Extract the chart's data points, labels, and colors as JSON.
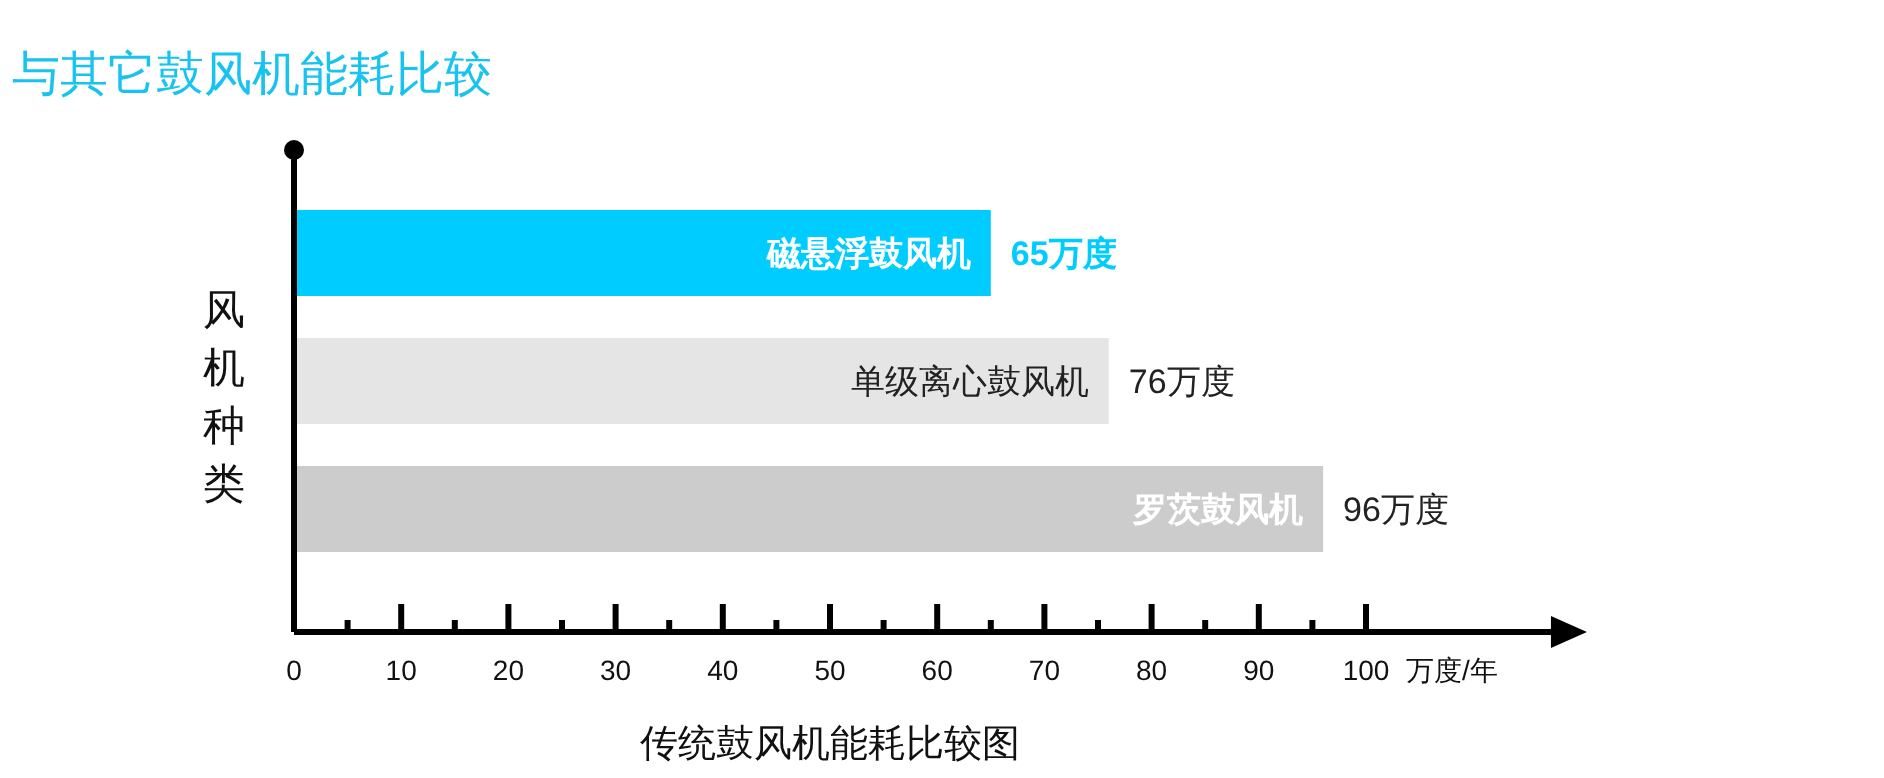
{
  "chart_data": {
    "type": "bar",
    "orientation": "horizontal",
    "title": "与其它鼓风机能耗比较",
    "ylabel": "风机种类",
    "xlabel": "万度/年",
    "annotations": [
      "传统鼓风机能耗比较图"
    ],
    "categories": [
      "磁悬浮鼓风机",
      "单级离心鼓风机",
      "罗茨鼓风机"
    ],
    "values": [
      65,
      76,
      96
    ],
    "colors": [
      "#00ccff",
      "#e5e5e5",
      "#cccccc"
    ],
    "value_labels": [
      "65万度",
      "76万度",
      "96万度"
    ],
    "xlim": [
      0,
      118
    ],
    "xticks": [
      0,
      {
        "value": 5,
        "label": null
      },
      10,
      {
        "value": 15,
        "label": null
      },
      20,
      {
        "value": 25,
        "label": null
      },
      30,
      {
        "value": 35,
        "label": null
      },
      40,
      {
        "value": 45,
        "label": null
      },
      50,
      {
        "value": 55,
        "label": null
      },
      60,
      {
        "value": 65,
        "label": null
      },
      70,
      {
        "value": 75,
        "label": null
      },
      80,
      {
        "value": 85,
        "label": null
      },
      90,
      {
        "value": 95,
        "label": null
      },
      100
    ],
    "grid": false
  }
}
